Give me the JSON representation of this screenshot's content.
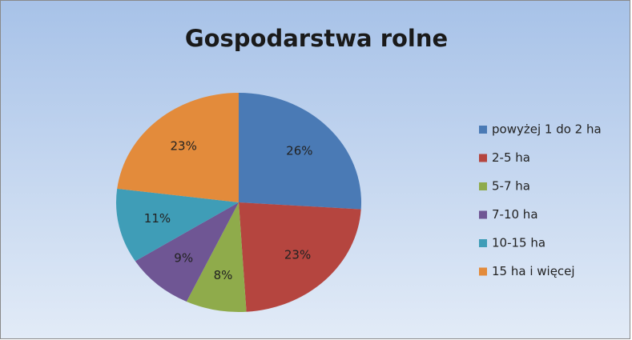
{
  "chart_data": {
    "type": "pie",
    "title": "Gospodarstwa rolne",
    "categories": [
      "powyżej 1 do 2 ha",
      "2-5 ha",
      "5-7 ha",
      "7-10 ha",
      "10-15 ha",
      "15 ha i więcej"
    ],
    "values": [
      26,
      23,
      8,
      9,
      11,
      23
    ],
    "value_labels": [
      "26%",
      "23%",
      "8%",
      "9%",
      "11%",
      "23%"
    ],
    "colors": [
      "#4a7ab5",
      "#b5453f",
      "#8fab4b",
      "#6f5694",
      "#3f9db7",
      "#e38b3b"
    ],
    "legend": "right"
  }
}
